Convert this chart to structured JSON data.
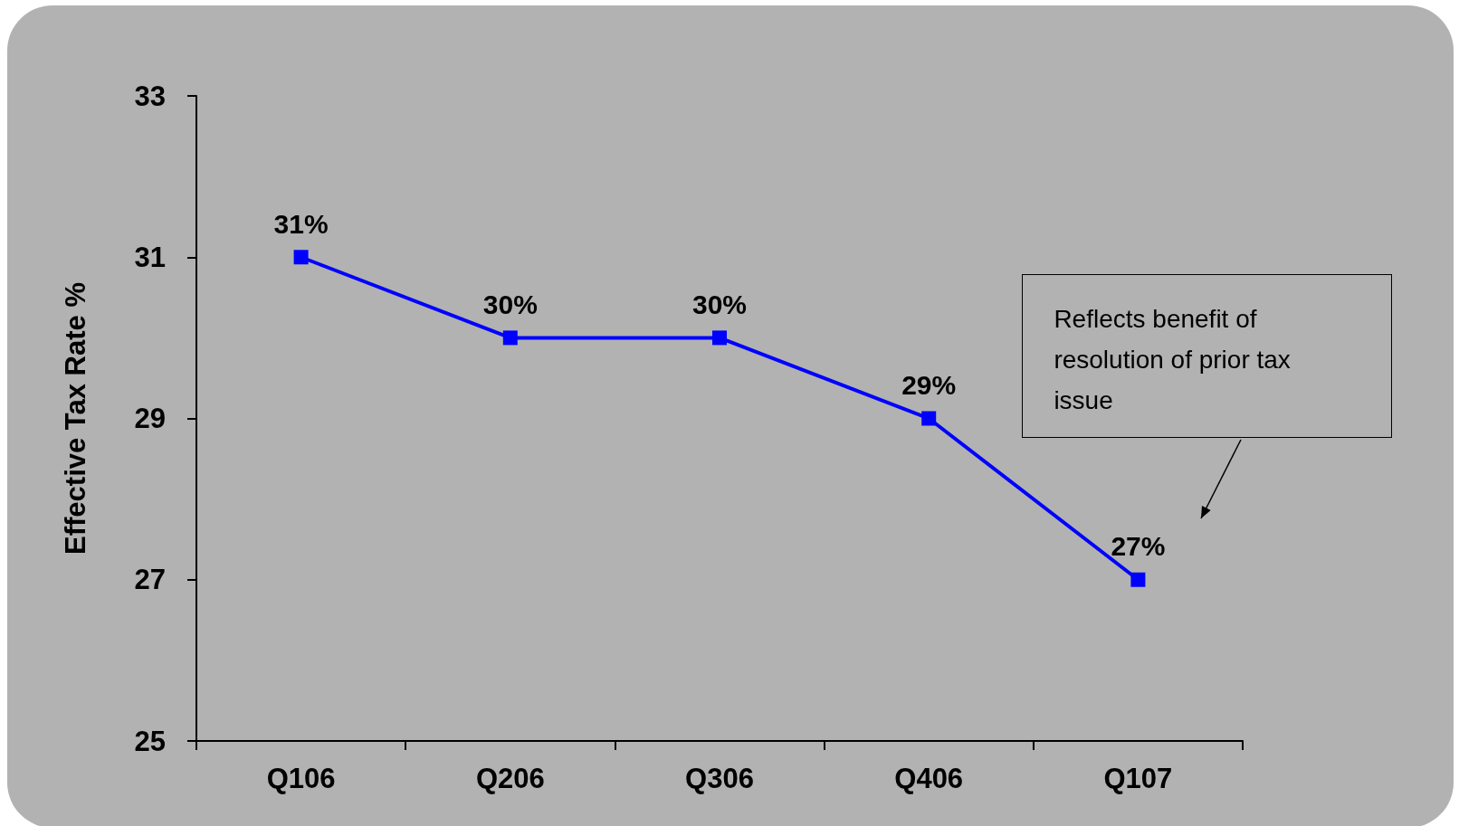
{
  "chart_data": {
    "type": "line",
    "ylabel": "Effective Tax Rate %",
    "categories": [
      "Q106",
      "Q206",
      "Q306",
      "Q406",
      "Q107"
    ],
    "series": [
      {
        "color": "#0000ff",
        "values": [
          31,
          30,
          30,
          29,
          27
        ],
        "value_labels": [
          "31%",
          "30%",
          "30%",
          "29%",
          "27%"
        ]
      }
    ],
    "ylim": [
      25,
      33
    ],
    "yticks": [
      25,
      27,
      29,
      31,
      33
    ],
    "grid": false,
    "marker": "square",
    "line_style": "solid",
    "annotations": [
      "Reflects benefit of\nresolution of prior tax\nissue"
    ]
  }
}
